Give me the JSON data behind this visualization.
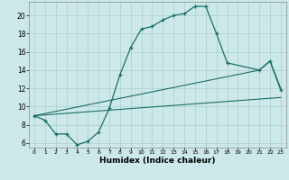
{
  "xlabel": "Humidex (Indice chaleur)",
  "background_color": "#cde8e8",
  "grid_color": "#aacfcf",
  "line_color": "#1a6e6a",
  "xlim": [
    -0.5,
    23.5
  ],
  "ylim": [
    5.5,
    21.5
  ],
  "xticks": [
    0,
    1,
    2,
    3,
    4,
    5,
    6,
    7,
    8,
    9,
    10,
    11,
    12,
    13,
    14,
    15,
    16,
    17,
    18,
    19,
    20,
    21,
    22,
    23
  ],
  "yticks": [
    6,
    8,
    10,
    12,
    14,
    16,
    18,
    20
  ],
  "curve_x": [
    0,
    1,
    2,
    3,
    4,
    5,
    6,
    7,
    8,
    9,
    10,
    11,
    12,
    13,
    14,
    15,
    16,
    17,
    18,
    21,
    22,
    23
  ],
  "curve_y": [
    9.0,
    8.5,
    7.0,
    7.0,
    5.8,
    6.2,
    7.2,
    9.8,
    13.5,
    16.5,
    18.5,
    18.8,
    19.5,
    20.0,
    20.2,
    21.0,
    21.0,
    18.0,
    14.8,
    14.0,
    15.0,
    11.8
  ],
  "line1_x": [
    0,
    23
  ],
  "line1_y": [
    9.0,
    11.0
  ],
  "line2_x": [
    0,
    21,
    22,
    23
  ],
  "line2_y": [
    9.0,
    14.0,
    15.0,
    12.0
  ]
}
